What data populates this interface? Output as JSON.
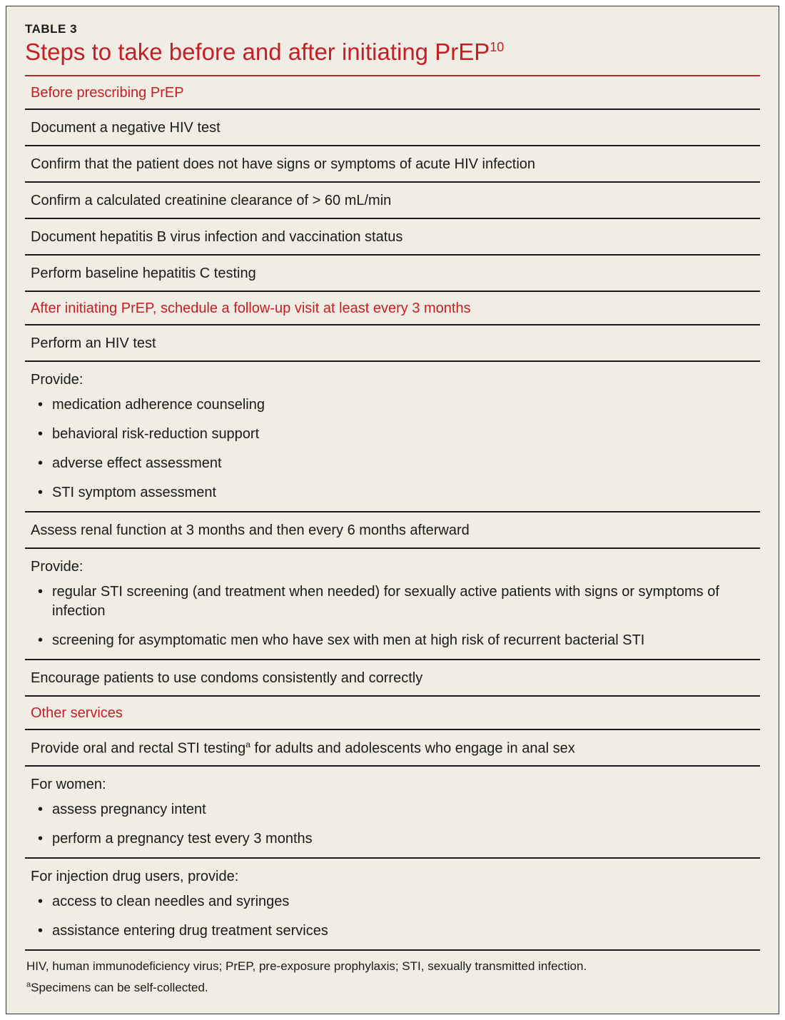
{
  "label": "TABLE 3",
  "title_pre": "Steps to take before and after initiating PrEP",
  "title_sup": "10",
  "colors": {
    "accent": "#c41e26",
    "rule": "#1a1a1a",
    "bg": "#f0ede4",
    "text": "#1a1a1a"
  },
  "sections": [
    {
      "header": "Before prescribing PrEP",
      "rows": [
        {
          "text": "Document a negative HIV test"
        },
        {
          "text": "Confirm that the patient does not have signs or symptoms of acute HIV infection"
        },
        {
          "text": "Confirm a calculated creatinine clearance of > 60 mL/min"
        },
        {
          "text": "Document hepatitis B virus infection and vaccination status"
        },
        {
          "text": "Perform baseline hepatitis C testing"
        }
      ]
    },
    {
      "header": "After initiating PrEP, schedule a follow-up visit at least every 3 months",
      "rows": [
        {
          "text": "Perform an HIV test"
        },
        {
          "lead": "Provide:",
          "bullets": [
            "medication adherence counseling",
            "behavioral risk-reduction support",
            "adverse effect assessment",
            "STI symptom assessment"
          ]
        },
        {
          "text": "Assess renal function at 3 months and then every 6 months afterward"
        },
        {
          "lead": "Provide:",
          "bullets": [
            "regular STI screening (and treatment when needed) for sexually active patients with signs or symptoms of infection",
            "screening for asymptomatic men who have sex with men at high risk of recurrent bacterial STI"
          ]
        },
        {
          "text": "Encourage patients to use condoms consistently and correctly"
        }
      ]
    },
    {
      "header": "Other services",
      "rows": [
        {
          "text_pre": "Provide oral and rectal STI testing",
          "sup": "a",
          "text_post": " for adults and adolescents who engage in anal sex"
        },
        {
          "lead": "For women:",
          "bullets": [
            "assess pregnancy intent",
            "perform a pregnancy test every 3 months"
          ]
        },
        {
          "lead": "For injection drug users, provide:",
          "bullets": [
            "access to clean needles and syringes",
            "assistance entering drug treatment services"
          ]
        }
      ]
    }
  ],
  "footnotes": [
    {
      "text": "HIV, human immunodeficiency virus; PrEP, pre-exposure prophylaxis; STI, sexually transmitted infection."
    },
    {
      "sup": "a",
      "text": "Specimens can be self-collected."
    }
  ]
}
